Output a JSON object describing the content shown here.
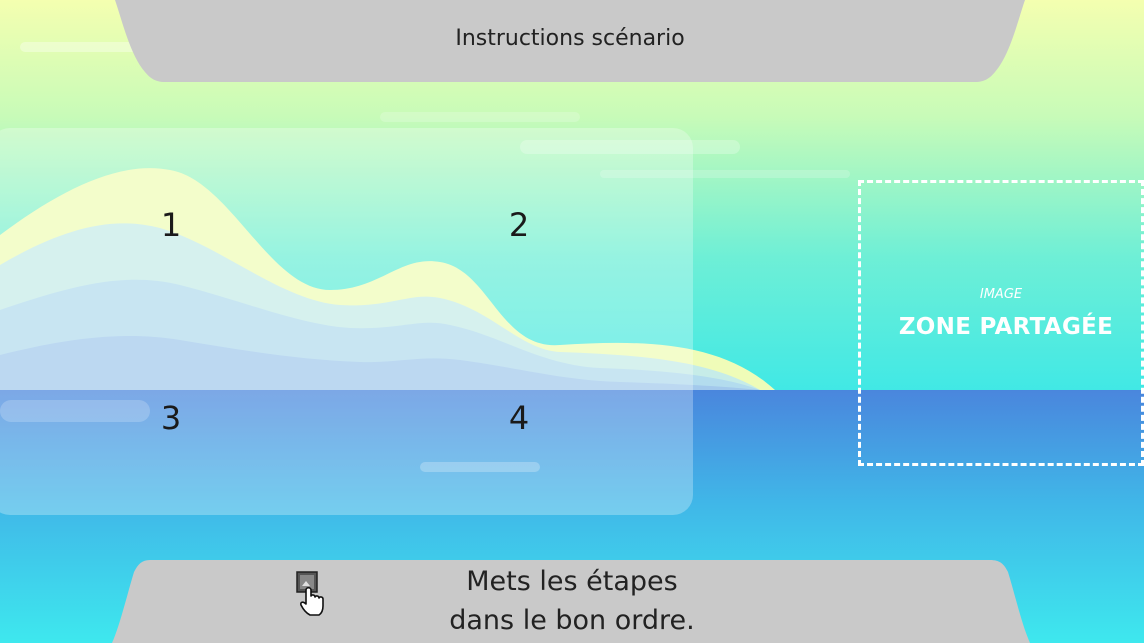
{
  "header": {
    "title": "Instructions scénario"
  },
  "slots": [
    {
      "number": "1"
    },
    {
      "number": "2"
    },
    {
      "number": "3"
    },
    {
      "number": "4"
    }
  ],
  "drop_zone": {
    "small_label": "IMAGE",
    "big_label": "ZONE PARTAGÉE"
  },
  "footer": {
    "instruction_line1": "Mets les étapes",
    "instruction_line2": "dans le bon ordre.",
    "hand_icon": "pointer-hand-icon"
  },
  "colors": {
    "bar_gray": "#c9c9c9",
    "sky_top": "#f1ffb2",
    "sky_bottom": "#3ee8ec",
    "sea": "#4a8ee0"
  }
}
